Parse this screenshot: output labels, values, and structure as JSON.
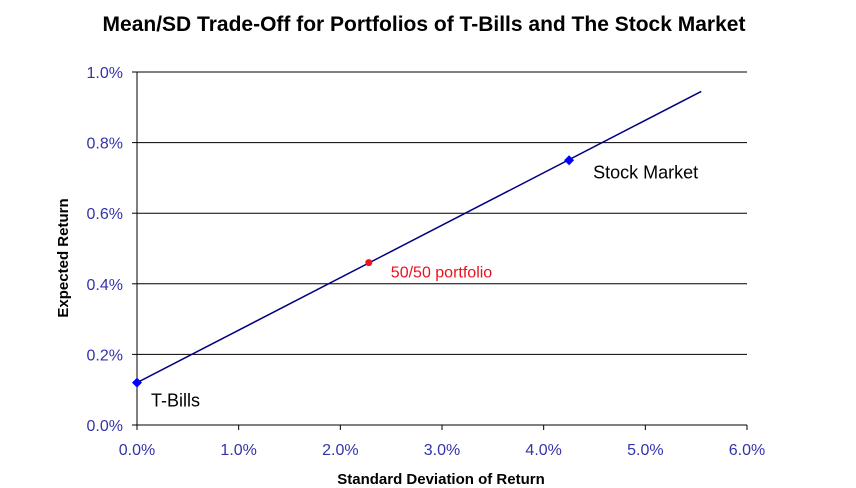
{
  "chart_data": {
    "type": "line",
    "title": "Mean/SD Trade-Off for Portfolios of T-Bills and The Stock Market",
    "xlabel": "Standard Deviation of Return",
    "ylabel": "Expected Return",
    "xlim": [
      0,
      0.06
    ],
    "ylim": [
      0,
      0.01
    ],
    "x_ticks": [
      "0.0%",
      "1.0%",
      "2.0%",
      "3.0%",
      "4.0%",
      "5.0%",
      "6.0%"
    ],
    "x_tick_values": [
      0,
      0.01,
      0.02,
      0.03,
      0.04,
      0.05,
      0.06
    ],
    "y_ticks": [
      "0.0%",
      "0.2%",
      "0.4%",
      "0.6%",
      "0.8%",
      "1.0%"
    ],
    "y_tick_values": [
      0,
      0.002,
      0.004,
      0.006,
      0.008,
      0.01
    ],
    "grid": "horizontal",
    "series": [
      {
        "x": [
          0,
          0.0555
        ],
        "y": [
          0.0012,
          0.00945
        ],
        "color": "#000080"
      }
    ],
    "points": [
      {
        "label": "T-Bills",
        "x": 0,
        "y": 0.0012,
        "marker": "diamond",
        "color": "#0000ff",
        "label_color": "#000000"
      },
      {
        "label": "Stock Market",
        "x": 0.0425,
        "y": 0.0075,
        "marker": "diamond",
        "color": "#0000ff",
        "label_color": "#000000"
      },
      {
        "label": "50/50 portfolio",
        "x": 0.0228,
        "y": 0.0046,
        "marker": "circle",
        "color": "#e8141e",
        "label_color": "#e8141e"
      }
    ]
  }
}
